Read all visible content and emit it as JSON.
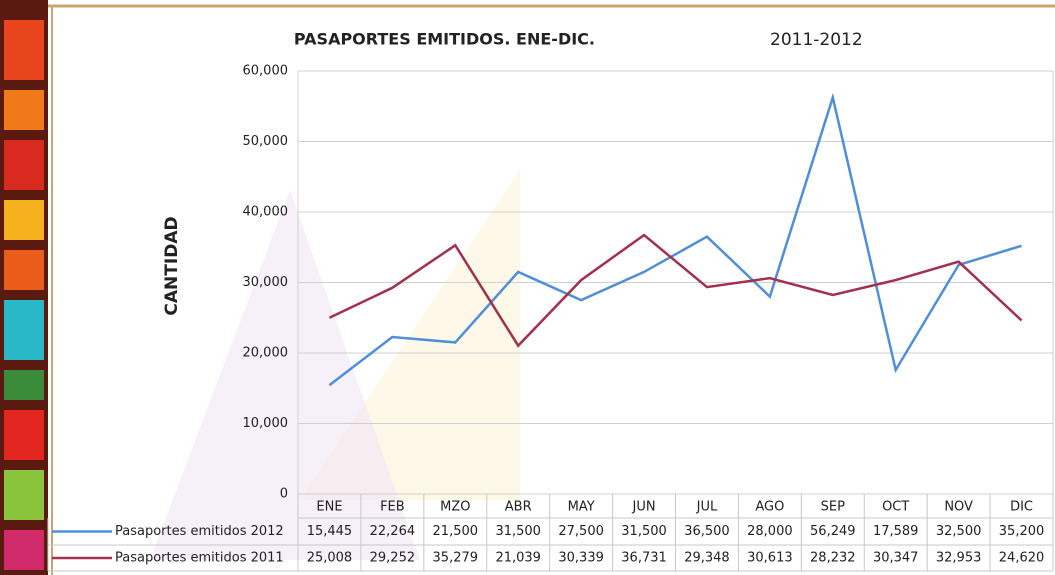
{
  "chart_data": {
    "type": "line",
    "title": "PASAPORTES EMITIDOS. ENE-DIC.",
    "subtitle": "2011-2012",
    "y_label": "CANTIDAD",
    "categories": [
      "ENE",
      "FEB",
      "MZO",
      "ABR",
      "MAY",
      "JUN",
      "JUL",
      "AGO",
      "SEP",
      "OCT",
      "NOV",
      "DIC"
    ],
    "series": [
      {
        "name": "Pasaportes emitidos 2012",
        "color": "#4f8fd8",
        "values": [
          15445,
          22264,
          21500,
          31500,
          27500,
          31500,
          36500,
          28000,
          56249,
          17589,
          32500,
          35200
        ],
        "value_labels": [
          "15,445",
          "22,264",
          "21,500",
          "31,500",
          "27,500",
          "31,500",
          "36,500",
          "28,000",
          "56,249",
          "17,589",
          "32,500",
          "35,200"
        ]
      },
      {
        "name": "Pasaportes emitidos 2011",
        "color": "#a3304c",
        "values": [
          25008,
          29252,
          35279,
          21039,
          30339,
          36731,
          29348,
          30613,
          28232,
          30347,
          32953,
          24620
        ],
        "value_labels": [
          "25,008",
          "29,252",
          "35,279",
          "21,039",
          "30,339",
          "36,731",
          "29,348",
          "30,613",
          "28,232",
          "30,347",
          "32,953",
          "24,620"
        ]
      }
    ],
    "ylim": [
      0,
      60000
    ],
    "yticks": [
      0,
      {
        "value": 10000,
        "label": "10,000"
      },
      {
        "value": 20000,
        "label": "20,000"
      },
      {
        "value": 30000,
        "label": "30,000"
      },
      {
        "value": 40000,
        "label": "40,000"
      },
      {
        "value": 50000,
        "label": "50,000"
      },
      {
        "value": 60000,
        "label": "60,000"
      }
    ],
    "grid": true
  }
}
